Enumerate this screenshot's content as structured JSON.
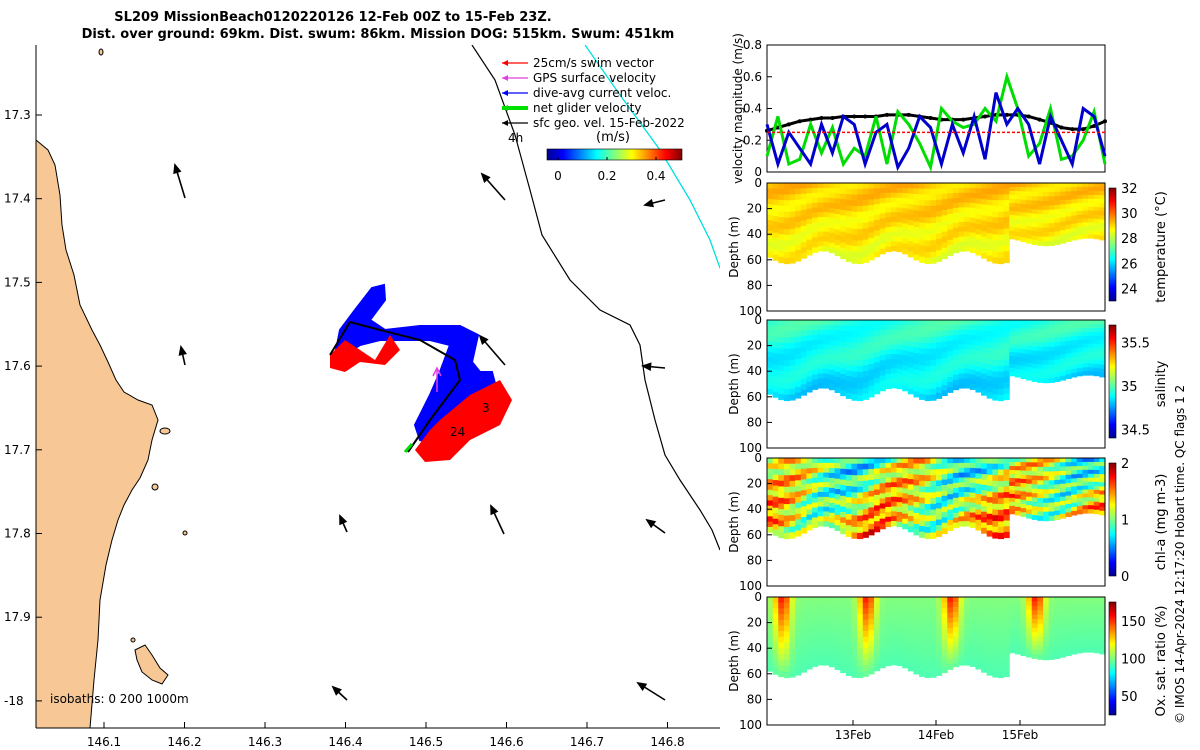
{
  "title": {
    "line1": "SL209 MissionBeach0120220126 12-Feb 00Z to 15-Feb 23Z.",
    "line2": "Dist. over ground: 69km. Dist. swum: 86km. Mission DOG: 515km. Swum: 451km"
  },
  "colors": {
    "land": "#f7c896",
    "swim": "#ff0000",
    "gps": "#e040e0",
    "current": "#0000ff",
    "net": "#00e000",
    "geo": "#000000",
    "track": "#00e0e0"
  },
  "map": {
    "lon_ticks": [
      "146.1",
      "146.2",
      "146.3",
      "146.4",
      "146.5",
      "146.6",
      "146.7",
      "146.8"
    ],
    "lat_ticks": [
      "17.3",
      "17.4",
      "17.5",
      "17.6",
      "17.7",
      "17.8",
      "17.9",
      "-18"
    ],
    "legend": [
      {
        "label": "25cm/s swim vector",
        "color": "#ff0000"
      },
      {
        "label": "GPS surface velocity",
        "color": "#e040e0"
      },
      {
        "label": "dive-avg current veloc.",
        "color": "#0000ff"
      },
      {
        "label": "net glider velocity",
        "color": "#00e000"
      },
      {
        "label": "sfc geo. vel. 15-Feb-2022",
        "color": "#000000"
      }
    ],
    "legend_extra": "4h",
    "colorbar_label": "(m/s)",
    "colorbar_ticks": [
      "0",
      "0.2",
      "0.4"
    ],
    "isobaths": "isobaths: 0   200  1000m",
    "track_labels": [
      "3",
      "24"
    ]
  },
  "chart_data": [
    {
      "type": "line",
      "title": "",
      "ylabel": "velocity magnitude (m/s)",
      "ylim": [
        0,
        0.8
      ],
      "yticks": [
        "0",
        "0.2",
        "0.4",
        "0.6",
        "0.8"
      ],
      "series": [
        {
          "color": "#000000",
          "values": [
            0.26,
            0.28,
            0.3,
            0.32,
            0.33,
            0.34,
            0.34,
            0.35,
            0.35,
            0.35,
            0.35,
            0.36,
            0.36,
            0.36,
            0.35,
            0.34,
            0.33,
            0.33,
            0.33,
            0.34,
            0.35,
            0.36,
            0.36,
            0.36,
            0.35,
            0.33,
            0.31,
            0.28,
            0.27,
            0.27,
            0.29,
            0.32
          ]
        },
        {
          "color": "#00dd00",
          "values": [
            0.1,
            0.35,
            0.05,
            0.08,
            0.3,
            0.12,
            0.28,
            0.05,
            0.15,
            0.1,
            0.35,
            0.05,
            0.38,
            0.3,
            0.18,
            0.03,
            0.4,
            0.32,
            0.28,
            0.3,
            0.4,
            0.32,
            0.6,
            0.4,
            0.1,
            0.18,
            0.4,
            0.08,
            0.1,
            0.2,
            0.38,
            0.05
          ]
        },
        {
          "color": "#0000cc",
          "values": [
            0.3,
            0.05,
            0.25,
            0.15,
            0.05,
            0.3,
            0.12,
            0.35,
            0.3,
            0.05,
            0.25,
            0.3,
            0.03,
            0.15,
            0.35,
            0.28,
            0.05,
            0.3,
            0.12,
            0.35,
            0.08,
            0.5,
            0.3,
            0.4,
            0.3,
            0.05,
            0.35,
            0.2,
            0.05,
            0.4,
            0.35,
            0.1
          ]
        },
        {
          "color": "#ff0000",
          "values": [
            0.25,
            0.25,
            0.25,
            0.25,
            0.25,
            0.25,
            0.25,
            0.25,
            0.25,
            0.25,
            0.25,
            0.25,
            0.25,
            0.25,
            0.25,
            0.25,
            0.25,
            0.25,
            0.25,
            0.25,
            0.25,
            0.25,
            0.25,
            0.25,
            0.25,
            0.25,
            0.25,
            0.25,
            0.25,
            0.25,
            0.25,
            0.25
          ]
        }
      ]
    },
    {
      "type": "heatmap",
      "variable": "temperature",
      "ylabel": "Depth (m)",
      "ylim": [
        0,
        100
      ],
      "yticks": [
        "0",
        "20",
        "40",
        "60",
        "80",
        "100"
      ],
      "colorbar_label": "temperature (°C)",
      "colorbar_ticks": [
        "24",
        "26",
        "28",
        "30",
        "32"
      ],
      "crange": [
        23,
        32
      ]
    },
    {
      "type": "heatmap",
      "variable": "salinity",
      "ylabel": "Depth (m)",
      "ylim": [
        0,
        100
      ],
      "yticks": [
        "0",
        "20",
        "40",
        "60",
        "80",
        "100"
      ],
      "colorbar_label": "salinity",
      "colorbar_ticks": [
        "34.5",
        "35",
        "35.5"
      ],
      "crange": [
        34.4,
        35.7
      ]
    },
    {
      "type": "heatmap",
      "variable": "chl-a",
      "ylabel": "Depth (m)",
      "ylim": [
        0,
        100
      ],
      "yticks": [
        "0",
        "20",
        "40",
        "60",
        "80",
        "100"
      ],
      "colorbar_label": "chl-a (mg m-3)",
      "colorbar_ticks": [
        "0",
        "1",
        "2"
      ],
      "crange": [
        0,
        2
      ]
    },
    {
      "type": "heatmap",
      "variable": "oxygen saturation",
      "ylabel": "Depth (m)",
      "ylim": [
        0,
        100
      ],
      "yticks": [
        "0",
        "20",
        "40",
        "60",
        "80",
        "100"
      ],
      "colorbar_label": "Ox. sat. ratio (%)",
      "colorbar_ticks": [
        "50",
        "100",
        "150"
      ],
      "crange": [
        25,
        175
      ],
      "xticks": [
        "13Feb",
        "14Feb",
        "15Feb"
      ]
    }
  ],
  "footer": "© IMOS 14-Apr-2024 12:17:20 Hobart time. QC flags 1  2"
}
